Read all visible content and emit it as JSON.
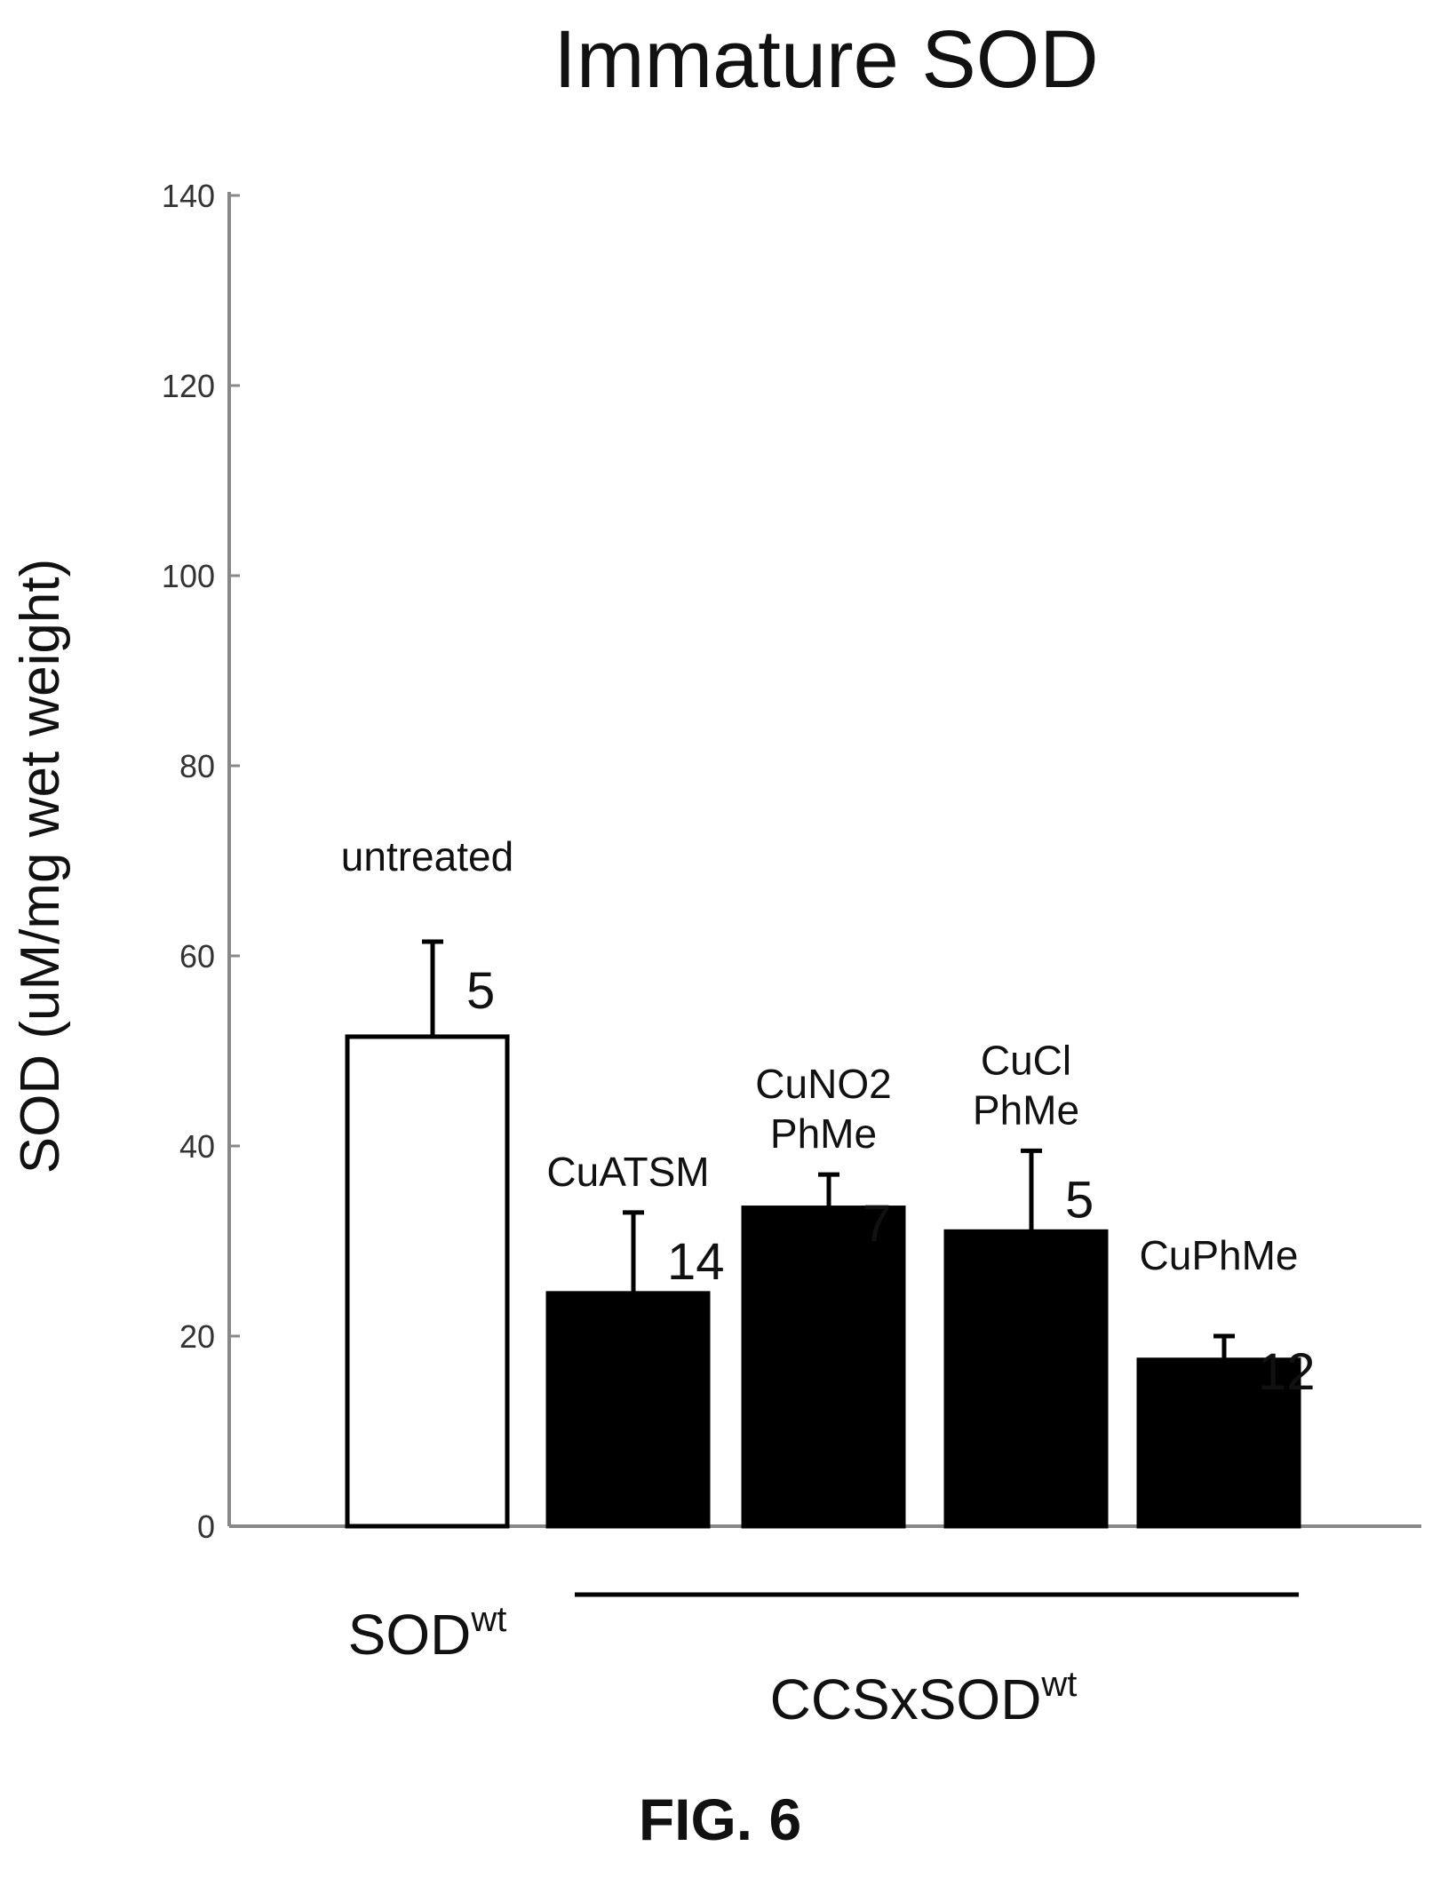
{
  "figure": {
    "label": "FIG. 6"
  },
  "chart_data": {
    "type": "bar",
    "title": "Immature SOD",
    "ylabel": "SOD (uM/mg wet weight)",
    "xlabel": "",
    "ylim": [
      0,
      140
    ],
    "yticks": [
      0,
      20,
      40,
      60,
      80,
      100,
      120,
      140
    ],
    "grid": false,
    "categories": [
      "untreated",
      "CuATSM",
      "CuNO2 PhMe",
      "CuCl PhMe",
      "CuPhMe"
    ],
    "category_label_lines": [
      [
        "untreated"
      ],
      [
        "CuATSM"
      ],
      [
        "CuNO2",
        "PhMe"
      ],
      [
        "CuCl",
        "PhMe"
      ],
      [
        "CuPhMe"
      ]
    ],
    "values": [
      51.5,
      24.5,
      33.5,
      31,
      17.5
    ],
    "errors": [
      10,
      8.5,
      3.5,
      8.5,
      2.5
    ],
    "n_labels": [
      "5",
      "14",
      "7",
      "5",
      "12"
    ],
    "fills": [
      "#ffffff",
      "#000000",
      "#000000",
      "#000000",
      "#000000"
    ],
    "groups": [
      {
        "base": "SOD",
        "superscript": "wt",
        "bars": [
          0
        ]
      },
      {
        "base": "CCSxSOD",
        "superscript": "wt",
        "bars": [
          1,
          2,
          3,
          4
        ]
      }
    ]
  }
}
